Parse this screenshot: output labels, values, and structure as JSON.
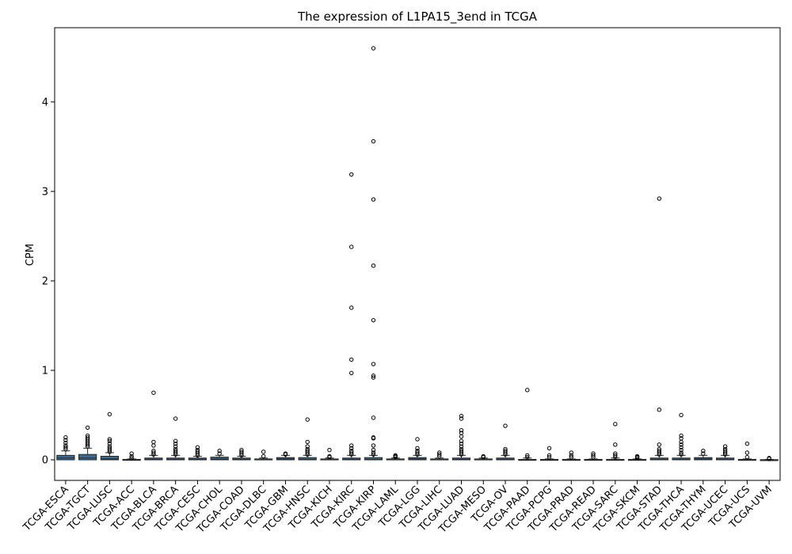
{
  "chart_data": {
    "type": "box",
    "title": "The expression of L1PA15_3end in TCGA",
    "xlabel": "",
    "ylabel": "CPM",
    "ylim": [
      -0.23,
      4.83
    ],
    "yticks": [
      0,
      1,
      2,
      3,
      4
    ],
    "grid": false,
    "colors": {
      "box": "#3a6a93",
      "edge": "#262626",
      "median": "#262626"
    },
    "categories": [
      "TCGA-ESCA",
      "TCGA-TGCT",
      "TCGA-LUSC",
      "TCGA-ACC",
      "TCGA-BLCA",
      "TCGA-BRCA",
      "TCGA-CESC",
      "TCGA-CHOL",
      "TCGA-COAD",
      "TCGA-DLBC",
      "TCGA-GBM",
      "TCGA-HNSC",
      "TCGA-KICH",
      "TCGA-KIRC",
      "TCGA-KIRP",
      "TCGA-LAML",
      "TCGA-LGG",
      "TCGA-LIHC",
      "TCGA-LUAD",
      "TCGA-MESO",
      "TCGA-OV",
      "TCGA-PAAD",
      "TCGA-PCPG",
      "TCGA-PRAD",
      "TCGA-READ",
      "TCGA-SARC",
      "TCGA-SKCM",
      "TCGA-STAD",
      "TCGA-THCA",
      "TCGA-THYM",
      "TCGA-UCEC",
      "TCGA-UCS",
      "TCGA-UVM"
    ],
    "boxes": [
      {
        "q1": 0.0,
        "median": 0.02,
        "q3": 0.05,
        "whislo": 0.0,
        "whishi": 0.1,
        "outliers": [
          0.12,
          0.14,
          0.16,
          0.19,
          0.22,
          0.25
        ]
      },
      {
        "q1": 0.0,
        "median": 0.02,
        "q3": 0.06,
        "whislo": 0.0,
        "whishi": 0.13,
        "outliers": [
          0.15,
          0.17,
          0.19,
          0.21,
          0.23,
          0.25,
          0.27,
          0.36
        ]
      },
      {
        "q1": 0.0,
        "median": 0.01,
        "q3": 0.04,
        "whislo": 0.0,
        "whishi": 0.08,
        "outliers": [
          0.09,
          0.11,
          0.13,
          0.15,
          0.18,
          0.21,
          0.23,
          0.51
        ]
      },
      {
        "q1": 0.0,
        "median": 0.0,
        "q3": 0.005,
        "whislo": 0.0,
        "whishi": 0.01,
        "outliers": [
          0.02,
          0.04,
          0.07
        ]
      },
      {
        "q1": 0.0,
        "median": 0.005,
        "q3": 0.02,
        "whislo": 0.0,
        "whishi": 0.05,
        "outliers": [
          0.06,
          0.08,
          0.1,
          0.16,
          0.2,
          0.75
        ]
      },
      {
        "q1": 0.0,
        "median": 0.005,
        "q3": 0.02,
        "whislo": 0.0,
        "whishi": 0.05,
        "outliers": [
          0.06,
          0.08,
          0.1,
          0.12,
          0.15,
          0.18,
          0.21,
          0.46
        ]
      },
      {
        "q1": 0.0,
        "median": 0.005,
        "q3": 0.02,
        "whislo": 0.0,
        "whishi": 0.04,
        "outliers": [
          0.05,
          0.07,
          0.09,
          0.11,
          0.14
        ]
      },
      {
        "q1": 0.0,
        "median": 0.01,
        "q3": 0.03,
        "whislo": 0.0,
        "whishi": 0.05,
        "outliers": [
          0.07,
          0.1
        ]
      },
      {
        "q1": 0.0,
        "median": 0.005,
        "q3": 0.02,
        "whislo": 0.0,
        "whishi": 0.04,
        "outliers": [
          0.05,
          0.07,
          0.09,
          0.11
        ]
      },
      {
        "q1": 0.0,
        "median": 0.0,
        "q3": 0.01,
        "whislo": 0.0,
        "whishi": 0.02,
        "outliers": [
          0.04,
          0.09
        ]
      },
      {
        "q1": 0.0,
        "median": 0.01,
        "q3": 0.025,
        "whislo": 0.0,
        "whishi": 0.05,
        "outliers": [
          0.06,
          0.07
        ]
      },
      {
        "q1": 0.0,
        "median": 0.005,
        "q3": 0.025,
        "whislo": 0.0,
        "whishi": 0.05,
        "outliers": [
          0.06,
          0.08,
          0.1,
          0.12,
          0.15,
          0.2,
          0.45
        ]
      },
      {
        "q1": 0.0,
        "median": 0.0,
        "q3": 0.01,
        "whislo": 0.0,
        "whishi": 0.02,
        "outliers": [
          0.03,
          0.04,
          0.11
        ]
      },
      {
        "q1": 0.0,
        "median": 0.005,
        "q3": 0.02,
        "whislo": 0.0,
        "whishi": 0.05,
        "outliers": [
          0.06,
          0.08,
          0.1,
          0.13,
          0.16,
          0.97,
          1.12,
          1.7,
          2.38,
          3.19
        ]
      },
      {
        "q1": 0.0,
        "median": 0.005,
        "q3": 0.025,
        "whislo": 0.0,
        "whishi": 0.05,
        "outliers": [
          0.06,
          0.08,
          0.11,
          0.16,
          0.24,
          0.25,
          0.47,
          0.92,
          0.94,
          1.07,
          1.56,
          2.17,
          2.91,
          3.56,
          4.6
        ]
      },
      {
        "q1": 0.0,
        "median": 0.0,
        "q3": 0.01,
        "whislo": 0.0,
        "whishi": 0.02,
        "outliers": [
          0.03,
          0.04,
          0.05
        ]
      },
      {
        "q1": 0.0,
        "median": 0.01,
        "q3": 0.025,
        "whislo": 0.0,
        "whishi": 0.05,
        "outliers": [
          0.06,
          0.08,
          0.1,
          0.13,
          0.23
        ]
      },
      {
        "q1": 0.0,
        "median": 0.0,
        "q3": 0.01,
        "whislo": 0.0,
        "whishi": 0.02,
        "outliers": [
          0.04,
          0.06,
          0.08
        ]
      },
      {
        "q1": 0.0,
        "median": 0.005,
        "q3": 0.02,
        "whislo": 0.0,
        "whishi": 0.05,
        "outliers": [
          0.06,
          0.08,
          0.1,
          0.12,
          0.15,
          0.18,
          0.21,
          0.26,
          0.3,
          0.33,
          0.46,
          0.49
        ]
      },
      {
        "q1": 0.0,
        "median": 0.0,
        "q3": 0.01,
        "whislo": 0.0,
        "whishi": 0.02,
        "outliers": [
          0.03,
          0.04
        ]
      },
      {
        "q1": 0.0,
        "median": 0.005,
        "q3": 0.02,
        "whislo": 0.0,
        "whishi": 0.05,
        "outliers": [
          0.06,
          0.08,
          0.1,
          0.12,
          0.38
        ]
      },
      {
        "q1": 0.0,
        "median": 0.0,
        "q3": 0.005,
        "whislo": 0.0,
        "whishi": 0.02,
        "outliers": [
          0.03,
          0.05,
          0.78
        ]
      },
      {
        "q1": 0.0,
        "median": 0.0,
        "q3": 0.005,
        "whislo": 0.0,
        "whishi": 0.01,
        "outliers": [
          0.03,
          0.05,
          0.13
        ]
      },
      {
        "q1": 0.0,
        "median": 0.0,
        "q3": 0.005,
        "whislo": 0.0,
        "whishi": 0.01,
        "outliers": [
          0.03,
          0.05,
          0.08
        ]
      },
      {
        "q1": 0.0,
        "median": 0.0,
        "q3": 0.005,
        "whislo": 0.0,
        "whishi": 0.01,
        "outliers": [
          0.03,
          0.05,
          0.07
        ]
      },
      {
        "q1": 0.0,
        "median": 0.0,
        "q3": 0.005,
        "whislo": 0.0,
        "whishi": 0.02,
        "outliers": [
          0.03,
          0.05,
          0.07,
          0.17,
          0.4
        ]
      },
      {
        "q1": 0.0,
        "median": 0.0,
        "q3": 0.005,
        "whislo": 0.0,
        "whishi": 0.01,
        "outliers": [
          0.02,
          0.03,
          0.04
        ]
      },
      {
        "q1": 0.0,
        "median": 0.005,
        "q3": 0.02,
        "whislo": 0.0,
        "whishi": 0.05,
        "outliers": [
          0.06,
          0.08,
          0.1,
          0.12,
          0.17,
          0.56,
          2.92
        ]
      },
      {
        "q1": 0.0,
        "median": 0.005,
        "q3": 0.02,
        "whislo": 0.0,
        "whishi": 0.05,
        "outliers": [
          0.06,
          0.08,
          0.11,
          0.14,
          0.17,
          0.2,
          0.24,
          0.27,
          0.5
        ]
      },
      {
        "q1": 0.0,
        "median": 0.01,
        "q3": 0.025,
        "whislo": 0.0,
        "whishi": 0.05,
        "outliers": [
          0.07,
          0.1
        ]
      },
      {
        "q1": 0.0,
        "median": 0.005,
        "q3": 0.02,
        "whislo": 0.0,
        "whishi": 0.05,
        "outliers": [
          0.06,
          0.08,
          0.1,
          0.12,
          0.15
        ]
      },
      {
        "q1": 0.0,
        "median": 0.0,
        "q3": 0.005,
        "whislo": 0.0,
        "whishi": 0.01,
        "outliers": [
          0.03,
          0.08,
          0.18
        ]
      },
      {
        "q1": 0.0,
        "median": 0.0,
        "q3": 0.002,
        "whislo": 0.0,
        "whishi": 0.005,
        "outliers": [
          0.01,
          0.02
        ]
      }
    ]
  }
}
